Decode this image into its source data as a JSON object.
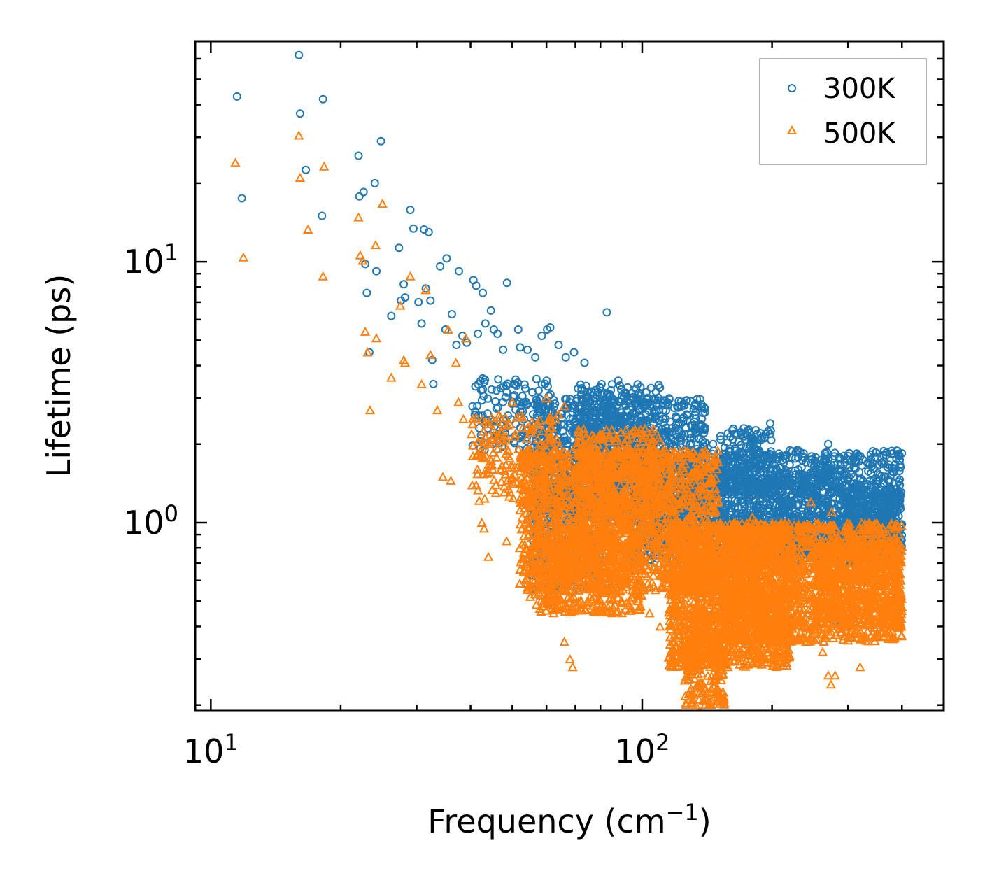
{
  "chart_data": {
    "type": "scatter",
    "title": "",
    "xlabel": "Frequency (cm⁻¹)",
    "ylabel": "Lifetime (ps)",
    "xscale": "log",
    "yscale": "log",
    "xlim": [
      9.2,
      500
    ],
    "ylim": [
      0.19,
      70
    ],
    "x_ticks": [
      {
        "value": 10,
        "base": "10",
        "exp": "1"
      },
      {
        "value": 100,
        "base": "10",
        "exp": "2"
      }
    ],
    "y_ticks": [
      {
        "value": 1,
        "base": "10",
        "exp": "0"
      },
      {
        "value": 10,
        "base": "10",
        "exp": "1"
      }
    ],
    "legend_position": "top-right",
    "series": [
      {
        "name": "300K",
        "marker": "circle",
        "color": "#1f77b4",
        "points": [
          [
            11.5,
            43
          ],
          [
            11.8,
            17.5
          ],
          [
            16,
            62
          ],
          [
            16.1,
            37
          ],
          [
            16.6,
            22.5
          ],
          [
            18.2,
            42
          ],
          [
            18.1,
            15
          ],
          [
            22,
            25.5
          ],
          [
            22.1,
            17.8
          ],
          [
            22.6,
            18.5
          ],
          [
            22.8,
            9.8
          ],
          [
            23,
            7.6
          ],
          [
            23.3,
            4.5
          ],
          [
            24,
            20
          ],
          [
            24.2,
            9.2
          ],
          [
            24.8,
            29
          ],
          [
            26.2,
            6.2
          ],
          [
            27.3,
            11.3
          ],
          [
            27.6,
            7.1
          ],
          [
            28,
            8.2
          ],
          [
            28.2,
            7.3
          ],
          [
            29,
            15.8
          ],
          [
            29.5,
            13.4
          ],
          [
            30.3,
            7
          ],
          [
            30.8,
            5.8
          ],
          [
            31.2,
            13.3
          ],
          [
            31.5,
            7.9
          ],
          [
            32,
            13
          ],
          [
            32.3,
            7.1
          ],
          [
            32.6,
            4.2
          ],
          [
            32.8,
            3.4
          ],
          [
            34,
            9.6
          ],
          [
            35.2,
            10.3
          ],
          [
            35,
            5.5
          ],
          [
            36.2,
            6.3
          ],
          [
            37.1,
            4.8
          ],
          [
            37.6,
            9.2
          ],
          [
            38.3,
            5.2
          ],
          [
            39.2,
            4.9
          ],
          [
            40.6,
            8.5
          ],
          [
            41.2,
            8.1
          ],
          [
            41.6,
            5.3
          ],
          [
            42.7,
            7.6
          ],
          [
            43.3,
            5.8
          ],
          [
            44.6,
            6.5
          ],
          [
            45.3,
            5.5
          ],
          [
            46.2,
            5.3
          ],
          [
            47.6,
            4.6
          ],
          [
            48.6,
            8.3
          ],
          [
            50.5,
            3.4
          ],
          [
            51.6,
            5.5
          ],
          [
            52.1,
            4.7
          ],
          [
            54.2,
            4.6
          ],
          [
            56.5,
            4.3
          ],
          [
            58.5,
            5.2
          ],
          [
            60.2,
            5.5
          ],
          [
            61.2,
            5.6
          ],
          [
            64,
            4.8
          ],
          [
            66.5,
            4.3
          ],
          [
            69.5,
            4.5
          ],
          [
            73.5,
            4.1
          ],
          [
            82.8,
            6.4
          ],
          [
            88,
            3.5
          ],
          [
            92.5,
            3.3
          ],
          [
            97.5,
            3.0
          ],
          [
            104,
            2.8
          ],
          [
            112,
            2.7
          ],
          [
            122,
            2.1
          ],
          [
            133,
            2.3
          ],
          [
            146,
            2.0
          ],
          [
            158,
            2.2
          ],
          [
            172,
            2.3
          ],
          [
            186,
            1.9
          ],
          [
            198,
            2.4
          ],
          [
            213,
            1.7
          ],
          [
            230,
            1.6
          ],
          [
            252,
            1.6
          ],
          [
            270,
            2.0
          ],
          [
            292,
            1.3
          ],
          [
            320,
            1.4
          ],
          [
            346,
            1.3
          ],
          [
            372,
            1.2
          ],
          [
            396,
            1.25
          ],
          [
            285,
            0.48
          ],
          [
            280,
            0.42
          ],
          [
            240,
            0.9
          ],
          [
            210,
            1.0
          ],
          [
            160,
            1.0
          ],
          [
            130,
            1.2
          ],
          [
            112,
            1.3
          ],
          [
            98,
            1.5
          ],
          [
            86,
            1.6
          ],
          [
            74,
            1.6
          ],
          [
            65,
            1.5
          ],
          [
            60,
            1.0
          ],
          [
            58,
            0.82
          ],
          [
            62,
            0.6
          ],
          [
            70,
            0.48
          ]
        ],
        "clusters": [
          {
            "x": [
              40,
              62
            ],
            "y": [
              1.9,
              3.6
            ],
            "n": 140
          },
          {
            "x": [
              56,
              140
            ],
            "y": [
              1.0,
              3.0
            ],
            "n": 1100
          },
          {
            "x": [
              70,
              110
            ],
            "y": [
              1.4,
              3.4
            ],
            "n": 420
          },
          {
            "x": [
              55,
              80
            ],
            "y": [
              0.55,
              1.2
            ],
            "n": 200
          },
          {
            "x": [
              95,
              400
            ],
            "y": [
              0.7,
              1.9
            ],
            "n": 1500
          },
          {
            "x": [
              140,
              300
            ],
            "y": [
              0.75,
              1.6
            ],
            "n": 600
          },
          {
            "x": [
              150,
              200
            ],
            "y": [
              1.3,
              2.3
            ],
            "n": 150
          },
          {
            "x": [
              300,
              400
            ],
            "y": [
              0.75,
              1.35
            ],
            "n": 350
          }
        ]
      },
      {
        "name": "500K",
        "marker": "triangle",
        "color": "#ff7f0e",
        "points": [
          [
            11.4,
            24
          ],
          [
            11.9,
            10.4
          ],
          [
            16,
            30.5
          ],
          [
            16.1,
            21
          ],
          [
            16.8,
            13.3
          ],
          [
            18.2,
            8.8
          ],
          [
            18.3,
            23.2
          ],
          [
            22,
            14.8
          ],
          [
            22.2,
            10.6
          ],
          [
            22.5,
            10.1
          ],
          [
            22.8,
            5.4
          ],
          [
            23.1,
            4.5
          ],
          [
            23.4,
            2.7
          ],
          [
            24.1,
            11.6
          ],
          [
            24.2,
            5.1
          ],
          [
            25,
            16.7
          ],
          [
            26.2,
            3.6
          ],
          [
            27.5,
            6.8
          ],
          [
            28,
            4.2
          ],
          [
            28.2,
            4.1
          ],
          [
            29,
            8.8
          ],
          [
            30.8,
            3.4
          ],
          [
            31.5,
            7.8
          ],
          [
            32.3,
            4.4
          ],
          [
            33.5,
            2.7
          ],
          [
            34.5,
            1.5
          ],
          [
            35.5,
            5.5
          ],
          [
            36,
            1.45
          ],
          [
            37,
            4.1
          ],
          [
            37.5,
            2.9
          ],
          [
            38.5,
            2.5
          ],
          [
            39,
            5.1
          ],
          [
            40.5,
            1.8
          ],
          [
            41.5,
            1.6
          ],
          [
            42.5,
            1.0
          ],
          [
            43,
            0.95
          ],
          [
            44,
            0.74
          ],
          [
            46,
            2.1
          ],
          [
            48.5,
            0.85
          ],
          [
            49,
            1.35
          ],
          [
            50,
            2.9
          ],
          [
            52,
            0.8
          ],
          [
            55,
            0.52
          ],
          [
            57,
            0.65
          ],
          [
            60,
            0.52
          ],
          [
            63,
            0.47
          ],
          [
            66,
            0.35
          ],
          [
            68,
            0.3
          ],
          [
            69,
            0.28
          ],
          [
            75,
            0.5
          ],
          [
            80,
            0.6
          ],
          [
            86,
            0.55
          ],
          [
            92,
            0.58
          ],
          [
            98,
            0.5
          ],
          [
            104,
            0.45
          ],
          [
            110,
            0.4
          ],
          [
            118,
            0.35
          ],
          [
            126,
            0.32
          ],
          [
            130,
            0.22
          ],
          [
            133,
            0.2
          ],
          [
            136,
            0.19
          ],
          [
            140,
            0.21
          ],
          [
            148,
            0.25
          ],
          [
            158,
            0.28
          ],
          [
            170,
            0.32
          ],
          [
            185,
            0.36
          ],
          [
            200,
            0.42
          ],
          [
            220,
            0.38
          ],
          [
            240,
            0.35
          ],
          [
            252,
            0.4
          ],
          [
            262,
            0.32
          ],
          [
            270,
            0.26
          ],
          [
            274,
            0.24
          ],
          [
            280,
            0.26
          ],
          [
            290,
            0.38
          ],
          [
            300,
            0.45
          ],
          [
            320,
            0.28
          ],
          [
            340,
            0.55
          ],
          [
            360,
            0.45
          ],
          [
            380,
            0.4
          ],
          [
            396,
            0.5
          ],
          [
            398,
            0.78
          ],
          [
            275,
            1.1
          ],
          [
            246,
            1.2
          ],
          [
            210,
            1.0
          ],
          [
            180,
            1.05
          ],
          [
            150,
            1.2
          ],
          [
            120,
            1.4
          ],
          [
            100,
            1.6
          ],
          [
            88,
            1.9
          ],
          [
            76,
            2.0
          ],
          [
            66,
            2.8
          ],
          [
            60,
            3.0
          ],
          [
            54,
            2.1
          ],
          [
            50,
            1.5
          ],
          [
            47,
            1.6
          ]
        ],
        "clusters": [
          {
            "x": [
              40,
              65
            ],
            "y": [
              1.2,
              2.6
            ],
            "n": 200
          },
          {
            "x": [
              52,
              150
            ],
            "y": [
              0.55,
              1.9
            ],
            "n": 1600
          },
          {
            "x": [
              56,
              100
            ],
            "y": [
              0.45,
              0.9
            ],
            "n": 500
          },
          {
            "x": [
              70,
              110
            ],
            "y": [
              0.8,
              2.3
            ],
            "n": 500
          },
          {
            "x": [
              115,
              220
            ],
            "y": [
              0.28,
              1.0
            ],
            "n": 1500
          },
          {
            "x": [
              125,
              155
            ],
            "y": [
              0.2,
              0.45
            ],
            "n": 250
          },
          {
            "x": [
              150,
              400
            ],
            "y": [
              0.35,
              1.0
            ],
            "n": 1500
          },
          {
            "x": [
              250,
              400
            ],
            "y": [
              0.4,
              0.85
            ],
            "n": 500
          }
        ]
      }
    ]
  }
}
